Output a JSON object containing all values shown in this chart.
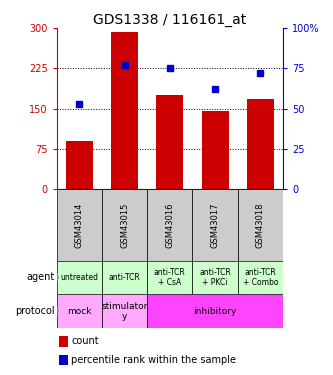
{
  "title": "GDS1338 / 116161_at",
  "samples": [
    "GSM43014",
    "GSM43015",
    "GSM43016",
    "GSM43017",
    "GSM43018"
  ],
  "counts": [
    90,
    293,
    175,
    145,
    168
  ],
  "percentiles": [
    53,
    77,
    75,
    62,
    72
  ],
  "left_ylim": [
    0,
    300
  ],
  "right_ylim": [
    0,
    100
  ],
  "left_yticks": [
    0,
    75,
    150,
    225,
    300
  ],
  "right_yticks": [
    0,
    25,
    50,
    75,
    100
  ],
  "left_yticklabels": [
    "0",
    "75",
    "150",
    "225",
    "300"
  ],
  "right_yticklabels": [
    "0",
    "25",
    "50",
    "75",
    "100%"
  ],
  "bar_color": "#cc0000",
  "dot_color": "#0000cc",
  "agent_labels": [
    "untreated",
    "anti-TCR",
    "anti-TCR\n+ CsA",
    "anti-TCR\n+ PKCi",
    "anti-TCR\n+ Combo"
  ],
  "agent_bg": "#ccffcc",
  "sample_label_bg": "#cccccc",
  "protocol_spans_data": [
    [
      0,
      1,
      "mock",
      "#ffaaff"
    ],
    [
      1,
      2,
      "stimulator\ny",
      "#ffaaff"
    ],
    [
      2,
      5,
      "inhibitory",
      "#ff44ff"
    ]
  ],
  "title_fontsize": 10,
  "tick_fontsize": 7,
  "sample_fontsize": 6,
  "agent_fontsize": 5.5,
  "protocol_fontsize": 6.5,
  "legend_fontsize": 7
}
